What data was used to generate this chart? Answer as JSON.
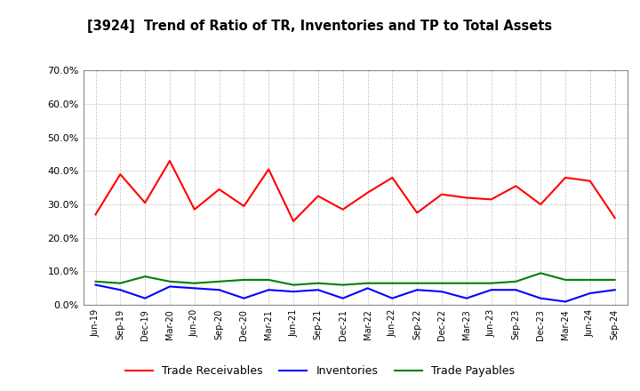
{
  "title": "[3924]  Trend of Ratio of TR, Inventories and TP to Total Assets",
  "labels": [
    "Jun-19",
    "Sep-19",
    "Dec-19",
    "Mar-20",
    "Jun-20",
    "Sep-20",
    "Dec-20",
    "Mar-21",
    "Jun-21",
    "Sep-21",
    "Dec-21",
    "Mar-22",
    "Jun-22",
    "Sep-22",
    "Dec-22",
    "Mar-23",
    "Jun-23",
    "Sep-23",
    "Dec-23",
    "Mar-24",
    "Jun-24",
    "Sep-24"
  ],
  "trade_receivables": [
    27.0,
    39.0,
    30.5,
    43.0,
    28.5,
    34.5,
    29.5,
    40.5,
    25.0,
    32.5,
    28.5,
    33.5,
    38.0,
    27.5,
    33.0,
    32.0,
    31.5,
    35.5,
    30.0,
    38.0,
    37.0,
    26.0
  ],
  "inventories": [
    6.0,
    4.5,
    2.0,
    5.5,
    5.0,
    4.5,
    2.0,
    4.5,
    4.0,
    4.5,
    2.0,
    5.0,
    2.0,
    4.5,
    4.0,
    2.0,
    4.5,
    4.5,
    2.0,
    1.0,
    3.5,
    4.5
  ],
  "trade_payables": [
    7.0,
    6.5,
    8.5,
    7.0,
    6.5,
    7.0,
    7.5,
    7.5,
    6.0,
    6.5,
    6.0,
    6.5,
    6.5,
    6.5,
    6.5,
    6.5,
    6.5,
    7.0,
    9.5,
    7.5,
    7.5,
    7.5
  ],
  "tr_color": "#FF0000",
  "inv_color": "#0000FF",
  "tp_color": "#008000",
  "background_color": "#FFFFFF",
  "plot_bg_color": "#FFFFFF",
  "grid_color": "#999999",
  "ylim": [
    0,
    70
  ],
  "yticks": [
    0,
    10,
    20,
    30,
    40,
    50,
    60,
    70
  ],
  "legend_labels": [
    "Trade Receivables",
    "Inventories",
    "Trade Payables"
  ]
}
